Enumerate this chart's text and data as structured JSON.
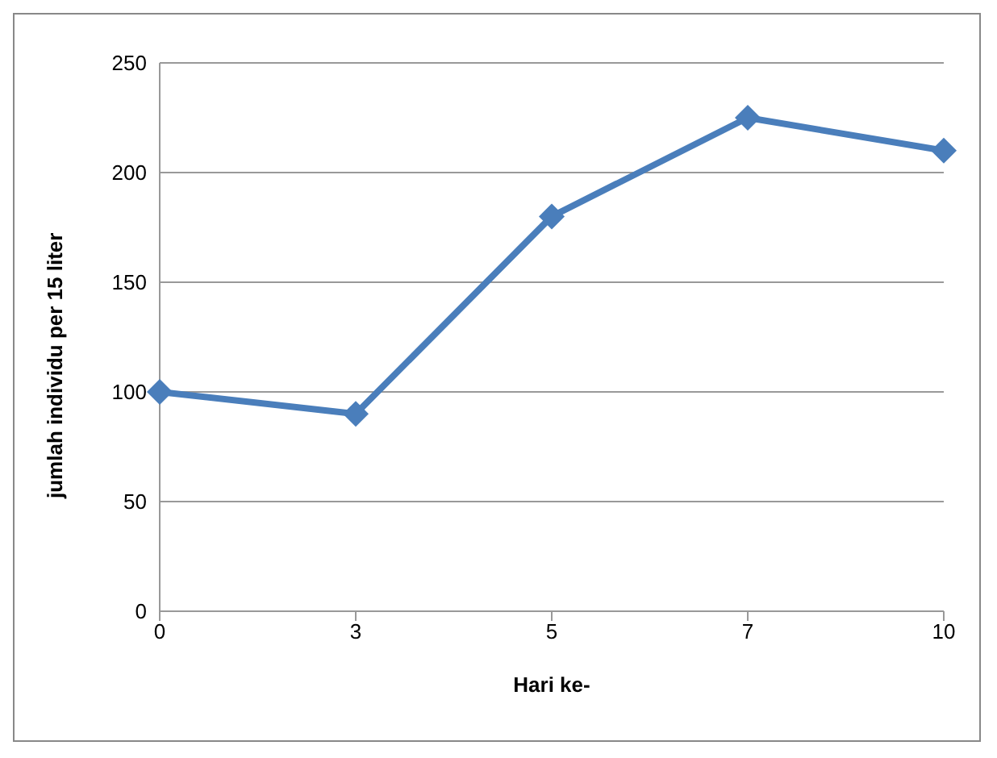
{
  "chart_data": {
    "type": "line",
    "xlabel": "Hari ke-",
    "ylabel": "jumlah individu per 15 liter",
    "categories": [
      "0",
      "3",
      "5",
      "7",
      "10"
    ],
    "series": [
      {
        "color": "#4a7ebb",
        "values": [
          100,
          90,
          180,
          225,
          210
        ]
      }
    ],
    "ylim": [
      0,
      250
    ],
    "yticks": [
      0,
      50,
      100,
      150,
      200,
      250
    ],
    "grid": "y",
    "marker": "diamond",
    "line_style": "solid",
    "legend": false
  }
}
